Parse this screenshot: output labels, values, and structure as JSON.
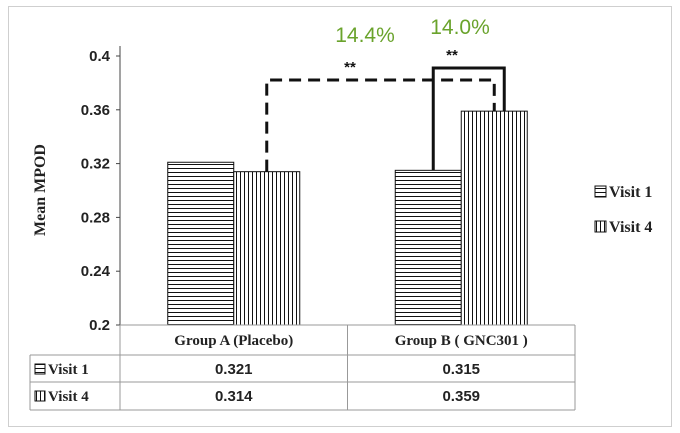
{
  "chart_data": {
    "type": "bar",
    "ylabel": "Mean MPOD",
    "ylim": [
      0.2,
      0.4
    ],
    "yticks": [
      "0.2",
      "0.24",
      "0.28",
      "0.32",
      "0.36",
      "0.4"
    ],
    "categories": [
      "Group A (Placebo)",
      "Group B ( GNC301 )"
    ],
    "series": [
      {
        "name": "Visit 1",
        "values": [
          0.321,
          0.315
        ],
        "pattern": "horizontal-stripes"
      },
      {
        "name": "Visit 4",
        "values": [
          0.314,
          0.359
        ],
        "pattern": "vertical-stripes"
      }
    ],
    "data_table": {
      "rows": [
        {
          "label": "Visit 1",
          "cells": [
            "0.321",
            "0.315"
          ]
        },
        {
          "label": "Visit 4",
          "cells": [
            "0.314",
            "0.359"
          ]
        }
      ]
    },
    "annotations": [
      {
        "text": "14.4%",
        "color": "#6aa32c"
      },
      {
        "text": "14.0%",
        "color": "#6aa32c"
      },
      {
        "text": "**"
      },
      {
        "text": "**"
      }
    ],
    "legend": {
      "placement": "right",
      "entries": [
        "Visit 1",
        "Visit 4"
      ]
    },
    "grid": false
  }
}
